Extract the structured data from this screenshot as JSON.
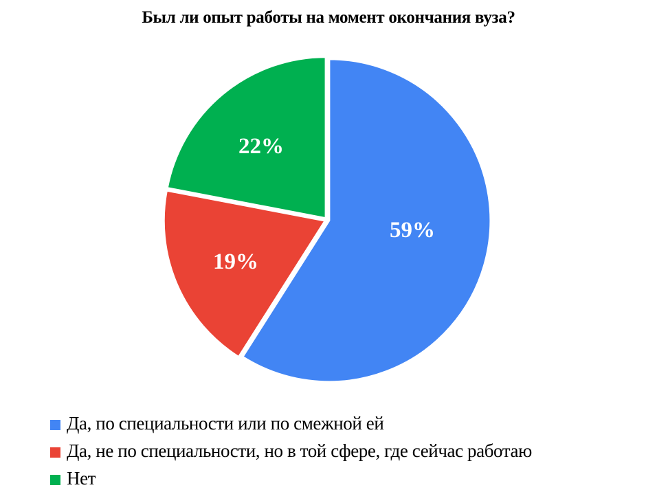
{
  "chart_data": {
    "type": "pie",
    "title": "Был ли опыт работы на момент окончания вуза?",
    "categories": [
      "Да, по специальности или по смежной ей",
      "Да, не по специальности, но в той сфере, где сейчас работаю",
      "Нет"
    ],
    "values": [
      59,
      19,
      22
    ],
    "labels": [
      "59%",
      "19%",
      "22%"
    ],
    "colors": [
      "#4285f4",
      "#ea4335",
      "#00b050"
    ],
    "legend_position": "bottom-left",
    "start_angle": "12 o'clock, clockwise"
  },
  "title": "Был ли опыт работы на момент окончания вуза?",
  "slices": [
    {
      "label": "59%",
      "color": "#4285f4"
    },
    {
      "label": "19%",
      "color": "#ea4335"
    },
    {
      "label": "22%",
      "color": "#00b050"
    }
  ],
  "legend": [
    {
      "label": "Да, по специальности или по смежной ей",
      "color": "#4285f4"
    },
    {
      "label": "Да, не по специальности, но в той сфере, где сейчас работаю",
      "color": "#ea4335"
    },
    {
      "label": "Нет",
      "color": "#00b050"
    }
  ]
}
